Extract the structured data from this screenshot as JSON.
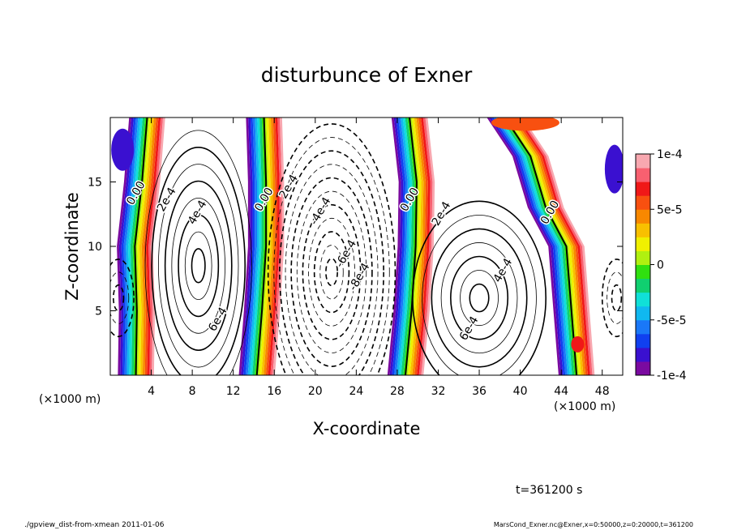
{
  "chart_data": {
    "type": "heatmap",
    "title": "disturbunce of Exner",
    "xlabel": "X-coordinate",
    "ylabel": "Z-coordinate",
    "x_unit_left": "(×1000 m)",
    "x_unit_right": "(×1000 m)",
    "xlim": [
      0,
      50
    ],
    "ylim": [
      0,
      20
    ],
    "x_ticks": [
      4,
      8,
      12,
      16,
      20,
      24,
      28,
      32,
      36,
      40,
      44,
      48
    ],
    "y_ticks": [
      5,
      10,
      15
    ],
    "colorbar": {
      "range": [
        -0.0001,
        0.0001
      ],
      "tick_labels": [
        "1e-4",
        "5e-5",
        "0",
        "-5e-5",
        "-1e-4"
      ],
      "tick_values": [
        0.0001,
        5e-05,
        0,
        -5e-05,
        -0.0001
      ],
      "colors": [
        "#7a0aa0",
        "#3a10d0",
        "#1040f0",
        "#1a78f8",
        "#10b8f0",
        "#10e0d8",
        "#10d070",
        "#30e010",
        "#b0f010",
        "#f0f000",
        "#f8c000",
        "#f88800",
        "#f85010",
        "#f01818",
        "#f86070",
        "#f8a8b0"
      ]
    },
    "contour_labels": [
      {
        "text": "0.00",
        "x": 2.8,
        "z": 14.0
      },
      {
        "text": "2e-4",
        "x": 5.8,
        "z": 13.5
      },
      {
        "text": "4e-4",
        "x": 8.8,
        "z": 12.5
      },
      {
        "text": "6e-4",
        "x": 10.8,
        "z": 4.2
      },
      {
        "text": "0.00",
        "x": 15.3,
        "z": 13.5
      },
      {
        "text": "2e-4",
        "x": 17.7,
        "z": 14.5
      },
      {
        "text": "-4e-4",
        "x": 20.8,
        "z": 12.6
      },
      {
        "text": "-6e-4",
        "x": 23.3,
        "z": 9.3
      },
      {
        "text": "-8e-4",
        "x": 24.6,
        "z": 7.5
      },
      {
        "text": "0.00",
        "x": 29.5,
        "z": 13.5
      },
      {
        "text": "2e-4",
        "x": 32.6,
        "z": 12.4
      },
      {
        "text": "4e-4",
        "x": 38.6,
        "z": 8.0
      },
      {
        "text": "6e-4",
        "x": 35.3,
        "z": 3.5
      },
      {
        "text": "0.00",
        "x": 43.2,
        "z": 12.5
      }
    ],
    "fields": [
      {
        "name": "zero_line_1",
        "x_at_z": [
          [
            0,
            2.5
          ],
          [
            5,
            2.6
          ],
          [
            10,
            2.4
          ],
          [
            15,
            3.1
          ],
          [
            20,
            3.6
          ]
        ]
      },
      {
        "name": "zero_line_2",
        "x_at_z": [
          [
            0,
            14.3
          ],
          [
            5,
            14.8
          ],
          [
            10,
            15.2
          ],
          [
            15,
            15.2
          ],
          [
            20,
            15.0
          ]
        ]
      },
      {
        "name": "zero_line_3",
        "x_at_z": [
          [
            0,
            28.8
          ],
          [
            5,
            29.4
          ],
          [
            10,
            29.8
          ],
          [
            15,
            29.9
          ],
          [
            20,
            29.2
          ]
        ]
      },
      {
        "name": "zero_line_4",
        "x_at_z": [
          [
            0,
            45.5
          ],
          [
            5,
            45.0
          ],
          [
            10,
            44.5
          ],
          [
            13,
            42.5
          ],
          [
            17,
            41.0
          ],
          [
            20,
            38.5
          ]
        ]
      }
    ],
    "grid": false,
    "legend": "right"
  },
  "labels": {
    "time": "t=361200 s",
    "footer_left": "./gpview_dist-from-xmean  2011-01-06",
    "footer_right": "MarsCond_Exner.nc@Exner,x=0:50000,z=0:20000,t=361200"
  }
}
